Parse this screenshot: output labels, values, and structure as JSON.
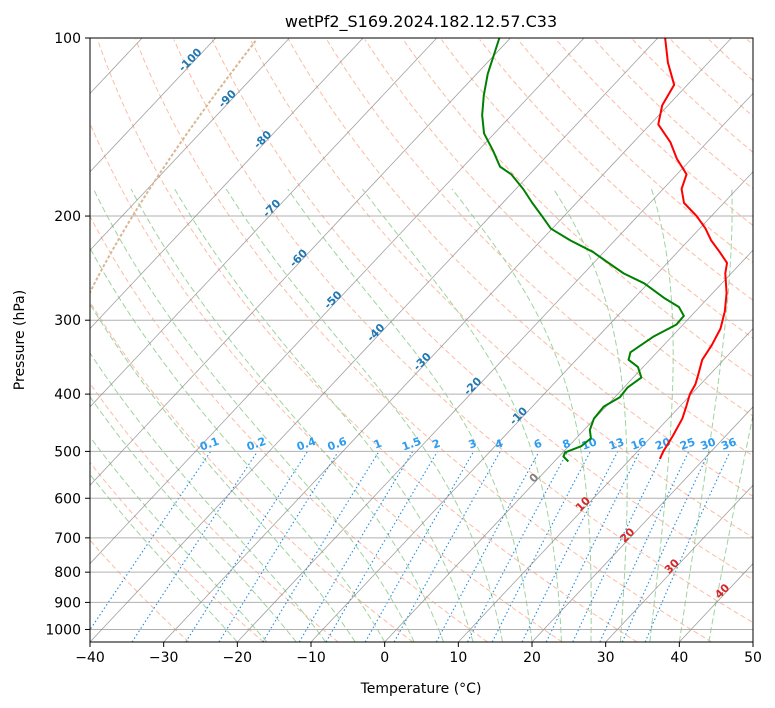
{
  "chart_data": {
    "type": "skew-t",
    "title": "wetPf2_S169.2024.182.12.57.C33",
    "xlabel": "Temperature (°C)",
    "ylabel": "Pressure (hPa)",
    "xlim": [
      -40,
      50
    ],
    "ylim": [
      1050,
      100
    ],
    "y_scale": "log",
    "grid": true,
    "x_ticks": [
      "−40",
      "−30",
      "−20",
      "−10",
      "0",
      "10",
      "20",
      "30",
      "40",
      "50"
    ],
    "y_ticks": [
      {
        "p": 100,
        "label": "100"
      },
      {
        "p": 200,
        "label": "200"
      },
      {
        "p": 300,
        "label": "300"
      },
      {
        "p": 400,
        "label": "400"
      },
      {
        "p": 500,
        "label": "500"
      },
      {
        "p": 600,
        "label": "600"
      },
      {
        "p": 700,
        "label": "700"
      },
      {
        "p": 800,
        "label": "800"
      },
      {
        "p": 900,
        "label": "900"
      },
      {
        "p": 1000,
        "label": "1000"
      }
    ],
    "colors": {
      "temperature": "#ff0000",
      "dewpoint": "#008000",
      "grid": "#b0b0b0",
      "isotherm": "#808080",
      "dry_adiabat": "#fdbba4",
      "moist_adiabat": "#9fd39f",
      "mixing_ratio": "#1f8de0",
      "freezing_isotherm": "#d8b893",
      "isotherm_label": "#1f77b4",
      "isotherm_label_warm": "#d62728",
      "mixing_label": "#2d9cf0"
    },
    "isotherm_labels": [
      "-100",
      "-90",
      "-80",
      "-70",
      "-60",
      "-50",
      "-40",
      "-30",
      "-20",
      "-10",
      "0",
      "10",
      "20",
      "30",
      "40"
    ],
    "mixing_ratio_labels": [
      "0.1",
      "0.2",
      "0.4",
      "0.6",
      "1",
      "1.5",
      "2",
      "3",
      "4",
      "6",
      "8",
      "10",
      "13",
      "16",
      "20",
      "25",
      "30",
      "36"
    ],
    "series": [
      {
        "kind": "temperature",
        "points": [
          {
            "p": 515,
            "t": 14.0
          },
          {
            "p": 500,
            "t": 13.5
          },
          {
            "p": 470,
            "t": 12.8
          },
          {
            "p": 440,
            "t": 11.9
          },
          {
            "p": 420,
            "t": 10.9
          },
          {
            "p": 400,
            "t": 9.8
          },
          {
            "p": 385,
            "t": 9.3
          },
          {
            "p": 370,
            "t": 8.4
          },
          {
            "p": 350,
            "t": 7.1
          },
          {
            "p": 330,
            "t": 6.5
          },
          {
            "p": 310,
            "t": 5.6
          },
          {
            "p": 290,
            "t": 4.0
          },
          {
            "p": 270,
            "t": 1.9
          },
          {
            "p": 250,
            "t": -0.8
          },
          {
            "p": 240,
            "t": -1.9
          },
          {
            "p": 230,
            "t": -4.3
          },
          {
            "p": 220,
            "t": -6.9
          },
          {
            "p": 210,
            "t": -9.2
          },
          {
            "p": 200,
            "t": -12.0
          },
          {
            "p": 190,
            "t": -15.4
          },
          {
            "p": 180,
            "t": -17.5
          },
          {
            "p": 170,
            "t": -18.7
          },
          {
            "p": 160,
            "t": -22.0
          },
          {
            "p": 150,
            "t": -25.0
          },
          {
            "p": 140,
            "t": -28.9
          },
          {
            "p": 130,
            "t": -30.8
          },
          {
            "p": 120,
            "t": -31.8
          },
          {
            "p": 110,
            "t": -35.5
          },
          {
            "p": 100,
            "t": -39.0
          }
        ]
      },
      {
        "kind": "dewpoint",
        "points": [
          {
            "p": 520,
            "t": 1.9
          },
          {
            "p": 510,
            "t": 0.6
          },
          {
            "p": 502,
            "t": 0.3
          },
          {
            "p": 490,
            "t": 1.7
          },
          {
            "p": 475,
            "t": 2.0
          },
          {
            "p": 460,
            "t": 0.8
          },
          {
            "p": 440,
            "t": -0.1
          },
          {
            "p": 420,
            "t": -0.3
          },
          {
            "p": 405,
            "t": 0.7
          },
          {
            "p": 390,
            "t": 0.5
          },
          {
            "p": 375,
            "t": 1.1
          },
          {
            "p": 360,
            "t": -0.7
          },
          {
            "p": 350,
            "t": -2.9
          },
          {
            "p": 340,
            "t": -3.6
          },
          {
            "p": 320,
            "t": -2.5
          },
          {
            "p": 305,
            "t": -0.9
          },
          {
            "p": 295,
            "t": -1.0
          },
          {
            "p": 285,
            "t": -2.8
          },
          {
            "p": 275,
            "t": -6.0
          },
          {
            "p": 260,
            "t": -10.5
          },
          {
            "p": 250,
            "t": -14.6
          },
          {
            "p": 240,
            "t": -18.0
          },
          {
            "p": 230,
            "t": -21.5
          },
          {
            "p": 220,
            "t": -26.0
          },
          {
            "p": 210,
            "t": -30.2
          },
          {
            "p": 200,
            "t": -33.0
          },
          {
            "p": 190,
            "t": -36.0
          },
          {
            "p": 180,
            "t": -39.0
          },
          {
            "p": 170,
            "t": -42.5
          },
          {
            "p": 165,
            "t": -45.0
          },
          {
            "p": 155,
            "t": -48.0
          },
          {
            "p": 145,
            "t": -51.4
          },
          {
            "p": 135,
            "t": -54.0
          },
          {
            "p": 125,
            "t": -56.3
          },
          {
            "p": 115,
            "t": -58.5
          },
          {
            "p": 100,
            "t": -61.5
          }
        ]
      }
    ]
  }
}
